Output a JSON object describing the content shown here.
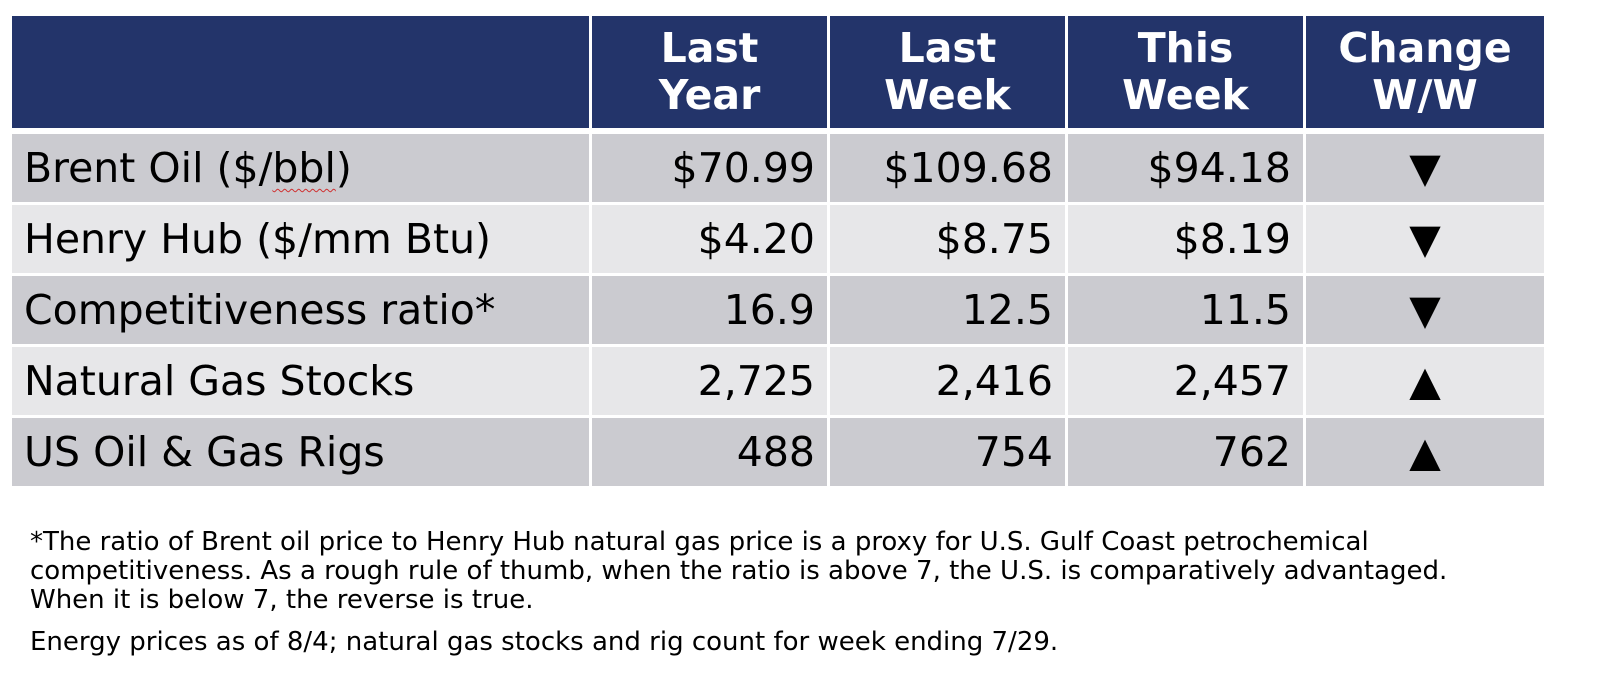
{
  "header": {
    "col1_line1": "Last",
    "col1_line2": "Year",
    "col2_line1": "Last",
    "col2_line2": "Week",
    "col3_line1": "This",
    "col3_line2": "Week",
    "col4_line1": "Change",
    "col4_line2": "W/W"
  },
  "rows": [
    {
      "label_pre": "Brent Oil ($/",
      "label_bbl": "bbl",
      "label_post": ")",
      "last_year": "$70.99",
      "last_week": "$109.68",
      "this_week": "$94.18",
      "change": "▼"
    },
    {
      "label": "Henry Hub ($/mm Btu)",
      "last_year": "$4.20",
      "last_week": "$8.75",
      "this_week": "$8.19",
      "change": "▼"
    },
    {
      "label": "Competitiveness ratio*",
      "last_year": "16.9",
      "last_week": "12.5",
      "this_week": "11.5",
      "change": "▼"
    },
    {
      "label": "Natural Gas Stocks",
      "last_year": "2,725",
      "last_week": "2,416",
      "this_week": "2,457",
      "change": "▲"
    },
    {
      "label": "US Oil & Gas Rigs",
      "last_year": "488",
      "last_week": "754",
      "this_week": "762",
      "change": "▲"
    }
  ],
  "footnote": "*The ratio of Brent oil price to Henry Hub natural gas price is a proxy for U.S. Gulf Coast petrochemical competitiveness. As a rough rule of thumb, when the ratio is above 7, the U.S. is comparatively advantaged. When it is below 7, the reverse is true.",
  "note": "Energy prices as of 8/4; natural gas stocks and rig count for week ending 7/29.",
  "colors": {
    "header_bg": "#23346a",
    "row_dark": "#cbcbd0",
    "row_light": "#e7e7e9"
  }
}
